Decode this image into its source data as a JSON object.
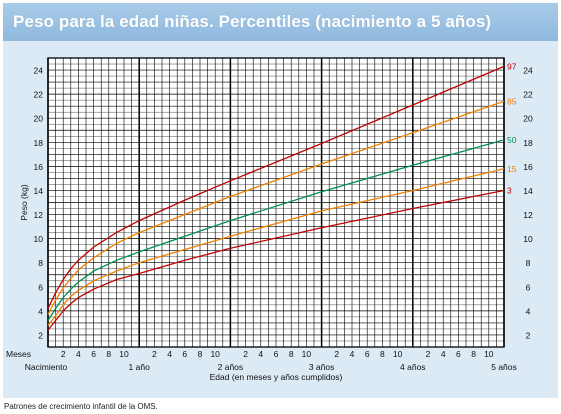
{
  "colors": {
    "title_bg": "#93bce1",
    "panel_bg": "#dceaf6",
    "grid": "#000000",
    "p3": "#c00000",
    "p15": "#f08000",
    "p50": "#009050",
    "p85": "#f08000",
    "p97": "#c00000"
  },
  "title": "Peso para la edad niñas. Percentiles (nacimiento a 5 años)",
  "footer": "Patrones de crecimiento infantil de la OMS.",
  "chart_data": {
    "type": "line",
    "title": "Peso para la edad niñas. Percentiles (nacimiento a 5 años)",
    "ylabel": "Peso (kg)",
    "xlabel": "Edad (en meses y años cumplidos)",
    "x_unit": "months",
    "xlim": [
      0,
      60
    ],
    "ylim": [
      1,
      25
    ],
    "y_ticks": [
      2,
      4,
      6,
      8,
      10,
      12,
      14,
      16,
      18,
      20,
      22,
      24
    ],
    "month_row_label": "Meses",
    "month_ticks": [
      "2",
      "4",
      "6",
      "8",
      "10"
    ],
    "year_labels": [
      "Nacimiento",
      "1 año",
      "2 años",
      "3 años",
      "4 años",
      "5 años"
    ],
    "grid": true,
    "x": [
      0,
      1,
      2,
      3,
      4,
      6,
      9,
      12,
      18,
      24,
      36,
      48,
      60
    ],
    "series": [
      {
        "name": "97",
        "color_key": "p97",
        "values": [
          4.2,
          5.5,
          6.6,
          7.5,
          8.2,
          9.3,
          10.5,
          11.5,
          13.2,
          14.8,
          17.9,
          21.1,
          24.3
        ]
      },
      {
        "name": "85",
        "color_key": "p85",
        "values": [
          3.7,
          4.9,
          5.9,
          6.7,
          7.4,
          8.4,
          9.6,
          10.5,
          12.0,
          13.5,
          16.2,
          18.8,
          21.4
        ]
      },
      {
        "name": "50",
        "color_key": "p50",
        "values": [
          3.2,
          4.2,
          5.1,
          5.8,
          6.4,
          7.3,
          8.2,
          8.9,
          10.2,
          11.5,
          13.9,
          16.1,
          18.2
        ]
      },
      {
        "name": "15",
        "color_key": "p15",
        "values": [
          2.8,
          3.6,
          4.5,
          5.2,
          5.7,
          6.5,
          7.3,
          8.0,
          9.1,
          10.2,
          12.3,
          14.0,
          15.8
        ]
      },
      {
        "name": "3",
        "color_key": "p3",
        "values": [
          2.4,
          3.2,
          4.0,
          4.6,
          5.1,
          5.8,
          6.6,
          7.1,
          8.2,
          9.2,
          10.9,
          12.5,
          14.0
        ]
      }
    ]
  }
}
